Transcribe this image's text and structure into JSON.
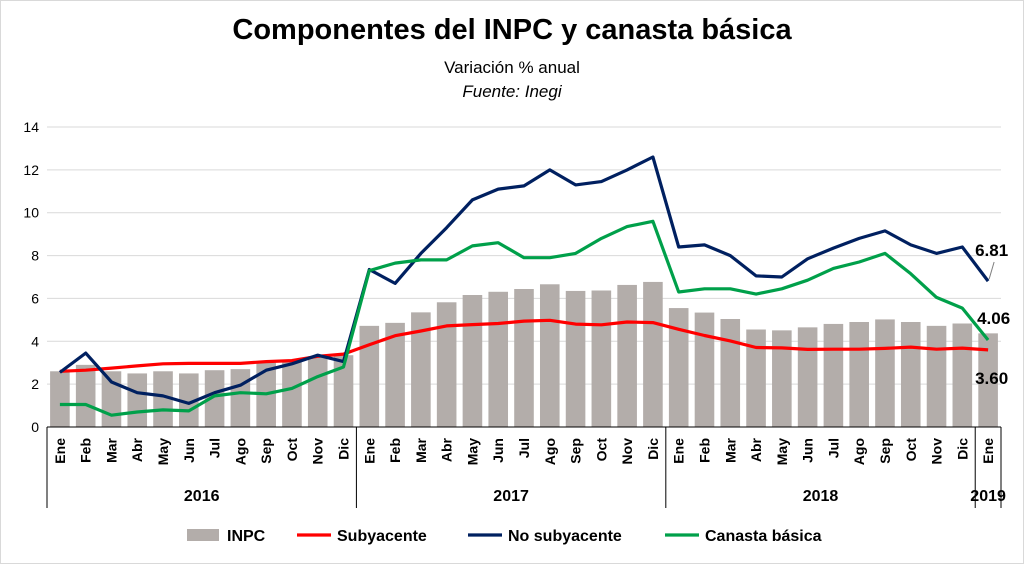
{
  "title": "Componentes del INPC y canasta básica",
  "subtitle": "Variación % anual",
  "source": "Fuente: Inegi",
  "chart_data": {
    "type": "bar+line",
    "ylim": [
      0,
      14
    ],
    "yticks": [
      0,
      2,
      4,
      6,
      8,
      10,
      12,
      14
    ],
    "grid": true,
    "legend_position": "bottom",
    "months": [
      "Ene",
      "Feb",
      "Mar",
      "Abr",
      "May",
      "Jun",
      "Jul",
      "Ago",
      "Sep",
      "Oct",
      "Nov",
      "Dic",
      "Ene",
      "Feb",
      "Mar",
      "Abr",
      "May",
      "Jun",
      "Jul",
      "Ago",
      "Sep",
      "Oct",
      "Nov",
      "Dic",
      "Ene",
      "Feb",
      "Mar",
      "Abr",
      "May",
      "Jun",
      "Jul",
      "Ago",
      "Sep",
      "Oct",
      "Nov",
      "Dic",
      "Ene"
    ],
    "years": [
      {
        "label": "2016",
        "start": 0,
        "end": 11
      },
      {
        "label": "2017",
        "start": 12,
        "end": 23
      },
      {
        "label": "2018",
        "start": 24,
        "end": 35
      },
      {
        "label": "2019",
        "start": 36,
        "end": 36
      }
    ],
    "series": [
      {
        "name": "INPC",
        "kind": "bar",
        "color": "#b3adaa",
        "values": [
          2.6,
          2.9,
          2.6,
          2.5,
          2.6,
          2.5,
          2.65,
          2.7,
          3.0,
          3.05,
          3.3,
          3.35,
          4.72,
          4.86,
          5.35,
          5.82,
          6.16,
          6.31,
          6.44,
          6.66,
          6.35,
          6.37,
          6.63,
          6.77,
          5.55,
          5.34,
          5.04,
          4.55,
          4.51,
          4.65,
          4.81,
          4.9,
          5.02,
          4.9,
          4.72,
          4.83,
          4.37
        ]
      },
      {
        "name": "Subyacente",
        "kind": "line",
        "color": "#ff0000",
        "values": [
          2.6,
          2.65,
          2.75,
          2.85,
          2.95,
          2.97,
          2.97,
          2.97,
          3.05,
          3.1,
          3.3,
          3.4,
          3.84,
          4.26,
          4.48,
          4.72,
          4.78,
          4.83,
          4.94,
          4.98,
          4.8,
          4.77,
          4.9,
          4.87,
          4.56,
          4.27,
          4.02,
          3.71,
          3.69,
          3.62,
          3.63,
          3.63,
          3.67,
          3.73,
          3.63,
          3.68,
          3.6
        ]
      },
      {
        "name": "No subyacente",
        "kind": "line",
        "color": "#002060",
        "values": [
          2.55,
          3.45,
          2.1,
          1.6,
          1.45,
          1.1,
          1.6,
          1.95,
          2.65,
          2.95,
          3.35,
          3.05,
          7.35,
          6.7,
          8.1,
          9.3,
          10.6,
          11.1,
          11.25,
          12.0,
          11.3,
          11.45,
          12.0,
          12.6,
          8.4,
          8.5,
          8.0,
          7.05,
          7.0,
          7.85,
          8.35,
          8.8,
          9.15,
          8.5,
          8.1,
          8.4,
          6.81
        ]
      },
      {
        "name": "Canasta básica",
        "kind": "line",
        "color": "#00a04a",
        "values": [
          1.05,
          1.05,
          0.55,
          0.7,
          0.8,
          0.75,
          1.45,
          1.6,
          1.55,
          1.8,
          2.35,
          2.8,
          7.3,
          7.65,
          7.8,
          7.8,
          8.45,
          8.6,
          7.9,
          7.9,
          8.1,
          8.8,
          9.35,
          9.6,
          6.3,
          6.45,
          6.45,
          6.2,
          6.45,
          6.85,
          7.4,
          7.7,
          8.1,
          7.15,
          6.05,
          5.55,
          4.06
        ]
      }
    ],
    "annotations": [
      {
        "text": "6.81",
        "series": "No subyacente"
      },
      {
        "text": "4.06",
        "series": "Canasta básica"
      },
      {
        "text": "3.60",
        "series": "Subyacente"
      }
    ]
  }
}
